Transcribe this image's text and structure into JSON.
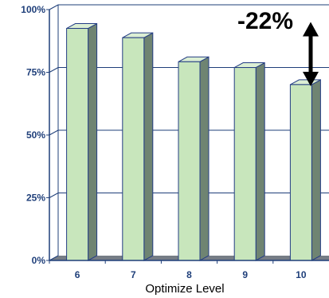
{
  "chart_data": {
    "type": "bar",
    "categories": [
      "6",
      "7",
      "8",
      "9",
      "10"
    ],
    "values": [
      92.5,
      88.8,
      79.2,
      76.9,
      70.1
    ],
    "xlabel": "Optimize Level",
    "ylabel": "",
    "ylim": [
      0,
      100
    ],
    "yticks": [
      "0%",
      "25%",
      "50%",
      "75%",
      "100%"
    ],
    "grid": true,
    "annotation": "-22%",
    "colors": {
      "bar_front": "#c8e6bc",
      "bar_top": "#dcefd4",
      "bar_side": "#6f8472",
      "outline": "#243d84",
      "gridline": "#1f3f7a",
      "floor": "#767d86",
      "tick_text": "#1f3f7a"
    }
  }
}
